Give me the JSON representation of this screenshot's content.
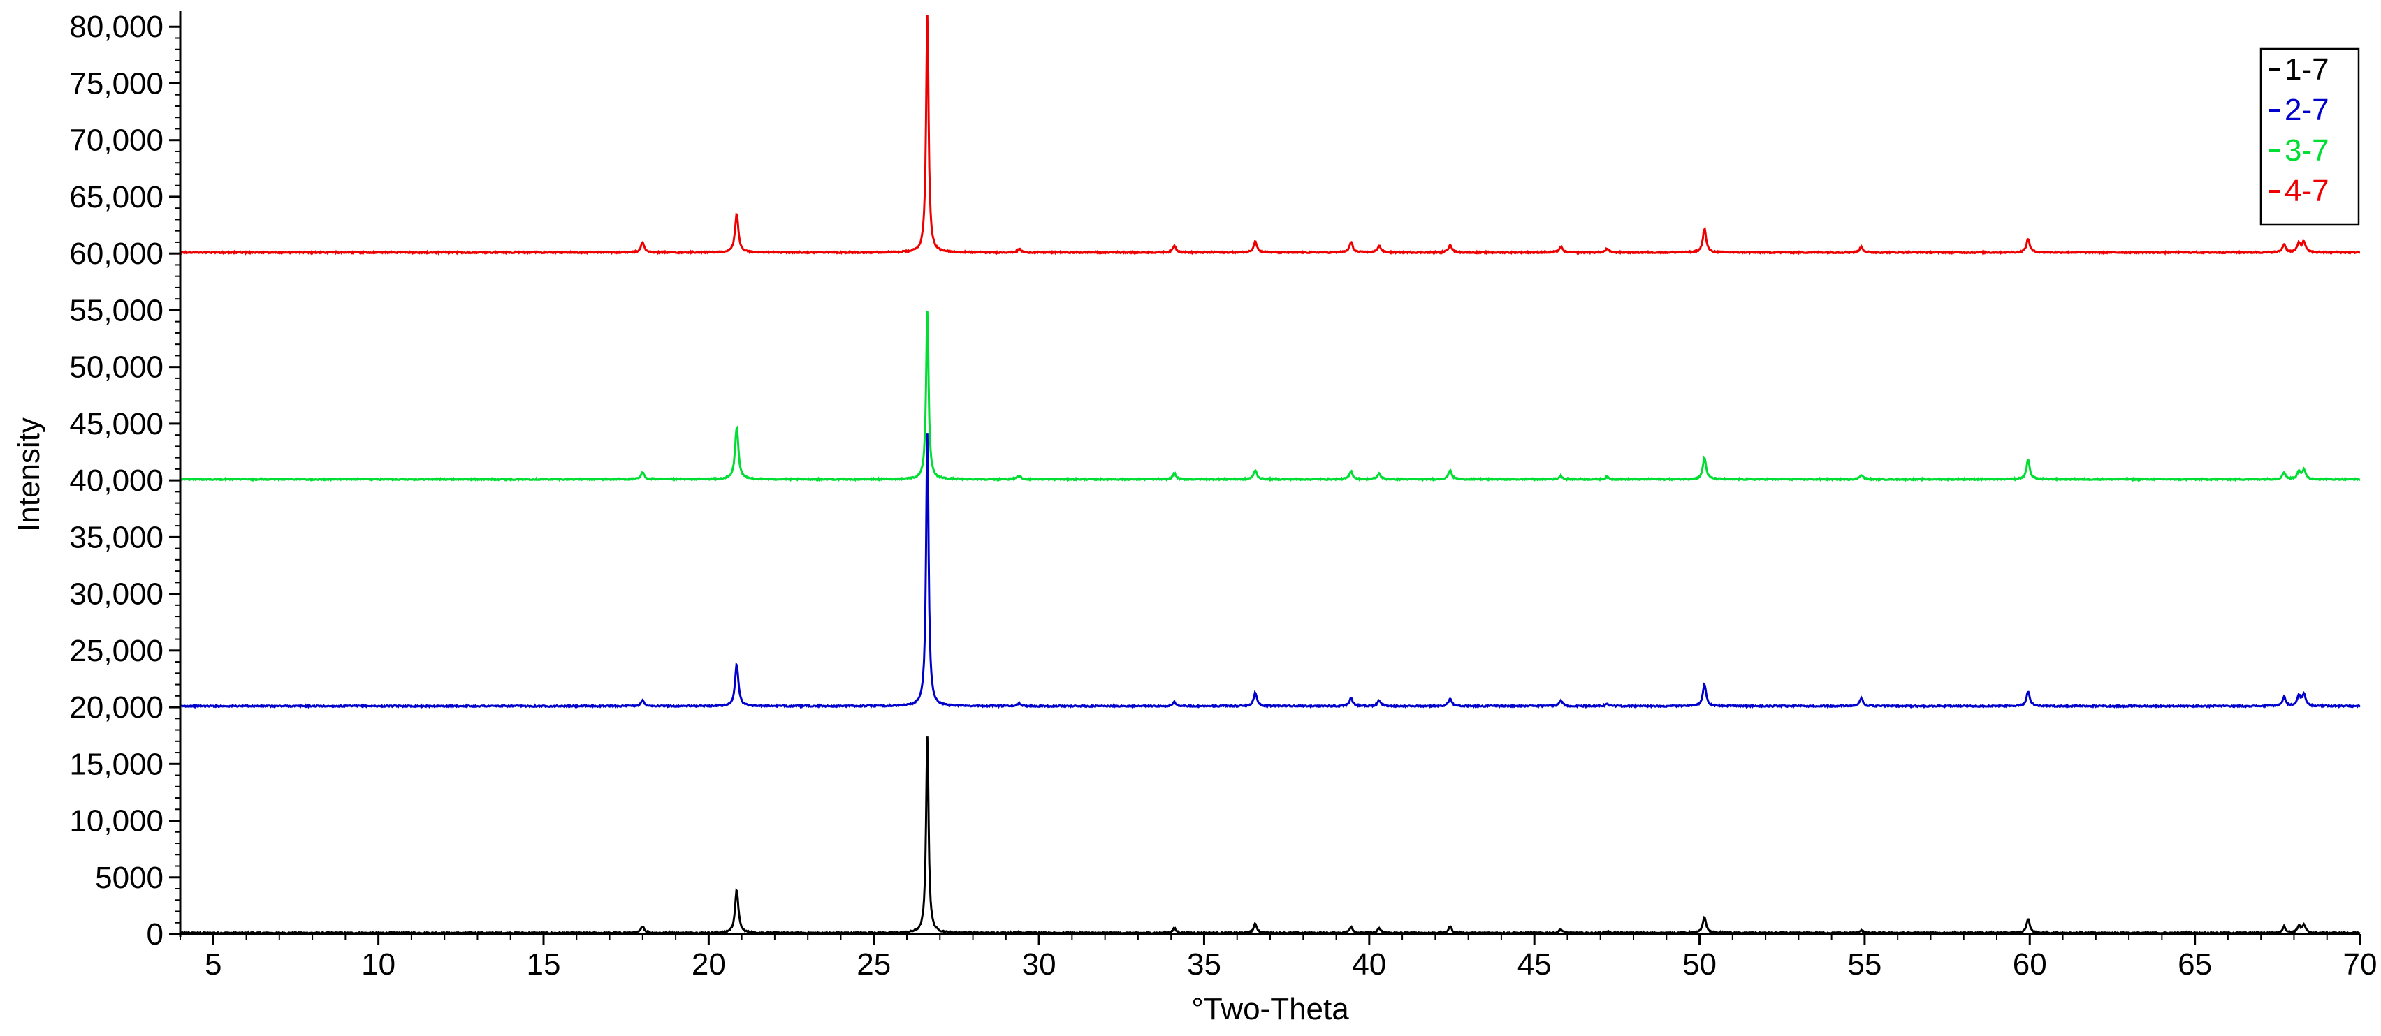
{
  "chart_data": {
    "type": "line",
    "xlabel": "°Two-Theta",
    "ylabel": "Intensity",
    "xlim": [
      4,
      70
    ],
    "ylim": [
      0,
      81000
    ],
    "x_ticks": [
      5,
      10,
      15,
      20,
      25,
      30,
      35,
      40,
      45,
      50,
      55,
      60,
      65,
      70
    ],
    "x_tick_labels": [
      "5",
      "10",
      "15",
      "20",
      "25",
      "30",
      "35",
      "40",
      "45",
      "50",
      "55",
      "60",
      "65",
      "70"
    ],
    "y_ticks": [
      0,
      5000,
      10000,
      15000,
      20000,
      25000,
      30000,
      35000,
      40000,
      45000,
      50000,
      55000,
      60000,
      65000,
      70000,
      75000,
      80000
    ],
    "y_tick_labels": [
      "0",
      "5000",
      "10,000",
      "15,000",
      "20,000",
      "25,000",
      "30,000",
      "35,000",
      "40,000",
      "45,000",
      "50,000",
      "55,000",
      "60,000",
      "65,000",
      "70,000",
      "75,000",
      "80,000"
    ],
    "grid": false,
    "legend_position": "top-right",
    "series": [
      {
        "name": "1-7",
        "color": "#000000",
        "baseline": 100,
        "peaks": [
          [
            18.0,
            700
          ],
          [
            20.85,
            3900
          ],
          [
            26.62,
            17500
          ],
          [
            29.4,
            250
          ],
          [
            34.1,
            500
          ],
          [
            36.55,
            900
          ],
          [
            39.45,
            650
          ],
          [
            40.3,
            500
          ],
          [
            42.45,
            650
          ],
          [
            45.8,
            400
          ],
          [
            47.2,
            250
          ],
          [
            50.15,
            1500
          ],
          [
            54.9,
            350
          ],
          [
            59.95,
            1300
          ],
          [
            67.7,
            650
          ],
          [
            68.15,
            700
          ],
          [
            68.3,
            750
          ]
        ]
      },
      {
        "name": "2-7",
        "color": "#0000cc",
        "baseline": 20100,
        "peaks": [
          [
            18.0,
            20600
          ],
          [
            20.85,
            23800
          ],
          [
            26.62,
            44200
          ],
          [
            29.4,
            20350
          ],
          [
            34.1,
            20450
          ],
          [
            36.55,
            21300
          ],
          [
            39.45,
            20800
          ],
          [
            40.3,
            20600
          ],
          [
            42.45,
            20750
          ],
          [
            45.8,
            20600
          ],
          [
            47.2,
            20300
          ],
          [
            50.15,
            22000
          ],
          [
            54.9,
            20800
          ],
          [
            59.95,
            21400
          ],
          [
            67.7,
            20900
          ],
          [
            68.15,
            21000
          ],
          [
            68.3,
            21100
          ]
        ]
      },
      {
        "name": "3-7",
        "color": "#00dd33",
        "baseline": 40100,
        "peaks": [
          [
            18.0,
            40700
          ],
          [
            20.85,
            44700
          ],
          [
            26.62,
            54900
          ],
          [
            29.4,
            40400
          ],
          [
            34.1,
            40600
          ],
          [
            36.55,
            40900
          ],
          [
            39.45,
            40800
          ],
          [
            40.3,
            40600
          ],
          [
            42.45,
            40900
          ],
          [
            45.8,
            40400
          ],
          [
            47.2,
            40300
          ],
          [
            50.15,
            42000
          ],
          [
            54.9,
            40500
          ],
          [
            59.95,
            41800
          ],
          [
            67.7,
            40700
          ],
          [
            68.15,
            40800
          ],
          [
            68.3,
            40900
          ]
        ]
      },
      {
        "name": "4-7",
        "color": "#ee0000",
        "baseline": 60100,
        "peaks": [
          [
            18.0,
            61000
          ],
          [
            20.85,
            63500
          ],
          [
            26.62,
            81000
          ],
          [
            29.4,
            60400
          ],
          [
            34.1,
            60700
          ],
          [
            36.55,
            61100
          ],
          [
            39.45,
            61000
          ],
          [
            40.3,
            60700
          ],
          [
            42.45,
            60800
          ],
          [
            45.8,
            60600
          ],
          [
            47.2,
            60400
          ],
          [
            50.15,
            62200
          ],
          [
            54.9,
            60600
          ],
          [
            59.95,
            61300
          ],
          [
            67.7,
            60800
          ],
          [
            68.15,
            60900
          ],
          [
            68.3,
            61000
          ]
        ]
      }
    ]
  }
}
